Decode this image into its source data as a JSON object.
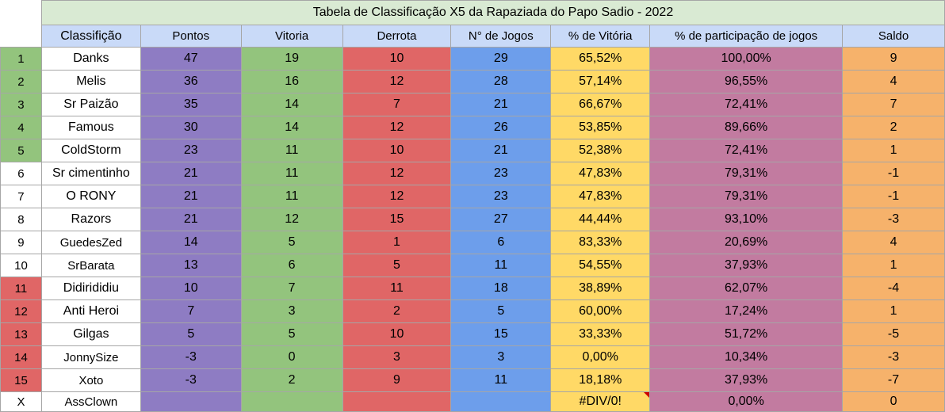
{
  "title": "Tabela de Classificação X5 da Rapaziada do Papo Sadio - 2022",
  "headers": {
    "classificacao": "Classifição",
    "pontos": "Pontos",
    "vitoria": "Vitoria",
    "derrota": "Derrota",
    "jogos": "N° de  Jogos",
    "pct_vitoria": "% de Vitória",
    "pct_participacao": "% de participação de jogos",
    "saldo": "Saldo"
  },
  "rows": [
    {
      "rank": "1",
      "rank_color": "#93c47d",
      "name": "Danks",
      "pontos": "47",
      "vitoria": "19",
      "derrota": "10",
      "jogos": "29",
      "pct_vitoria": "65,52%",
      "pct_participacao": "100,00%",
      "saldo": "9"
    },
    {
      "rank": "2",
      "rank_color": "#93c47d",
      "name": "Melis",
      "pontos": "36",
      "vitoria": "16",
      "derrota": "12",
      "jogos": "28",
      "pct_vitoria": "57,14%",
      "pct_participacao": "96,55%",
      "saldo": "4"
    },
    {
      "rank": "3",
      "rank_color": "#93c47d",
      "name": "Sr Paizão",
      "pontos": "35",
      "vitoria": "14",
      "derrota": "7",
      "jogos": "21",
      "pct_vitoria": "66,67%",
      "pct_participacao": "72,41%",
      "saldo": "7"
    },
    {
      "rank": "4",
      "rank_color": "#93c47d",
      "name": "Famous",
      "pontos": "30",
      "vitoria": "14",
      "derrota": "12",
      "jogos": "26",
      "pct_vitoria": "53,85%",
      "pct_participacao": "89,66%",
      "saldo": "2"
    },
    {
      "rank": "5",
      "rank_color": "#93c47d",
      "name": "ColdStorm",
      "pontos": "23",
      "vitoria": "11",
      "derrota": "10",
      "jogos": "21",
      "pct_vitoria": "52,38%",
      "pct_participacao": "72,41%",
      "saldo": "1"
    },
    {
      "rank": "6",
      "rank_color": "#ffffff",
      "name": "Sr cimentinho",
      "pontos": "21",
      "vitoria": "11",
      "derrota": "12",
      "jogos": "23",
      "pct_vitoria": "47,83%",
      "pct_participacao": "79,31%",
      "saldo": "-1"
    },
    {
      "rank": "7",
      "rank_color": "#ffffff",
      "name": "O RONY",
      "pontos": "21",
      "vitoria": "11",
      "derrota": "12",
      "jogos": "23",
      "pct_vitoria": "47,83%",
      "pct_participacao": "79,31%",
      "saldo": "-1"
    },
    {
      "rank": "8",
      "rank_color": "#ffffff",
      "name": "Razors",
      "pontos": "21",
      "vitoria": "12",
      "derrota": "15",
      "jogos": "27",
      "pct_vitoria": "44,44%",
      "pct_participacao": "93,10%",
      "saldo": "-3"
    },
    {
      "rank": "9",
      "rank_color": "#ffffff",
      "name": "GuedesZed",
      "pontos": "14",
      "vitoria": "5",
      "derrota": "1",
      "jogos": "6",
      "pct_vitoria": "83,33%",
      "pct_participacao": "20,69%",
      "saldo": "4"
    },
    {
      "rank": "10",
      "rank_color": "#ffffff",
      "name": "SrBarata",
      "pontos": "13",
      "vitoria": "6",
      "derrota": "5",
      "jogos": "11",
      "pct_vitoria": "54,55%",
      "pct_participacao": "37,93%",
      "saldo": "1"
    },
    {
      "rank": "11",
      "rank_color": "#e06666",
      "name": "Didirididiu",
      "pontos": "10",
      "vitoria": "7",
      "derrota": "11",
      "jogos": "18",
      "pct_vitoria": "38,89%",
      "pct_participacao": "62,07%",
      "saldo": "-4"
    },
    {
      "rank": "12",
      "rank_color": "#e06666",
      "name": "Anti Heroi",
      "pontos": "7",
      "vitoria": "3",
      "derrota": "2",
      "jogos": "5",
      "pct_vitoria": "60,00%",
      "pct_participacao": "17,24%",
      "saldo": "1"
    },
    {
      "rank": "13",
      "rank_color": "#e06666",
      "name": "Gilgas",
      "pontos": "5",
      "vitoria": "5",
      "derrota": "10",
      "jogos": "15",
      "pct_vitoria": "33,33%",
      "pct_participacao": "51,72%",
      "saldo": "-5"
    },
    {
      "rank": "14",
      "rank_color": "#e06666",
      "name": "JonnySize",
      "pontos": "-3",
      "vitoria": "0",
      "derrota": "3",
      "jogos": "3",
      "pct_vitoria": "0,00%",
      "pct_participacao": "10,34%",
      "saldo": "-3"
    },
    {
      "rank": "15",
      "rank_color": "#e06666",
      "name": "Xoto",
      "pontos": "-3",
      "vitoria": "2",
      "derrota": "9",
      "jogos": "11",
      "pct_vitoria": "18,18%",
      "pct_participacao": "37,93%",
      "saldo": "-7"
    },
    {
      "rank": "X",
      "rank_color": "#ffffff",
      "name": "AssClown",
      "pontos": "",
      "vitoria": "",
      "derrota": "",
      "jogos": "",
      "pct_vitoria": "#DIV/0!",
      "pct_participacao": "0,00%",
      "saldo": "0"
    }
  ],
  "colors": {
    "title_bg": "#d9ead3",
    "header_bg": "#c9daf8",
    "pontos": "#8e7cc3",
    "vitoria": "#93c47d",
    "derrota": "#e06666",
    "jogos": "#6d9eeb",
    "pct_vitoria": "#ffd966",
    "pct_participacao": "#c27ba0",
    "saldo": "#f6b26b",
    "error_marker": "#cc0000"
  }
}
